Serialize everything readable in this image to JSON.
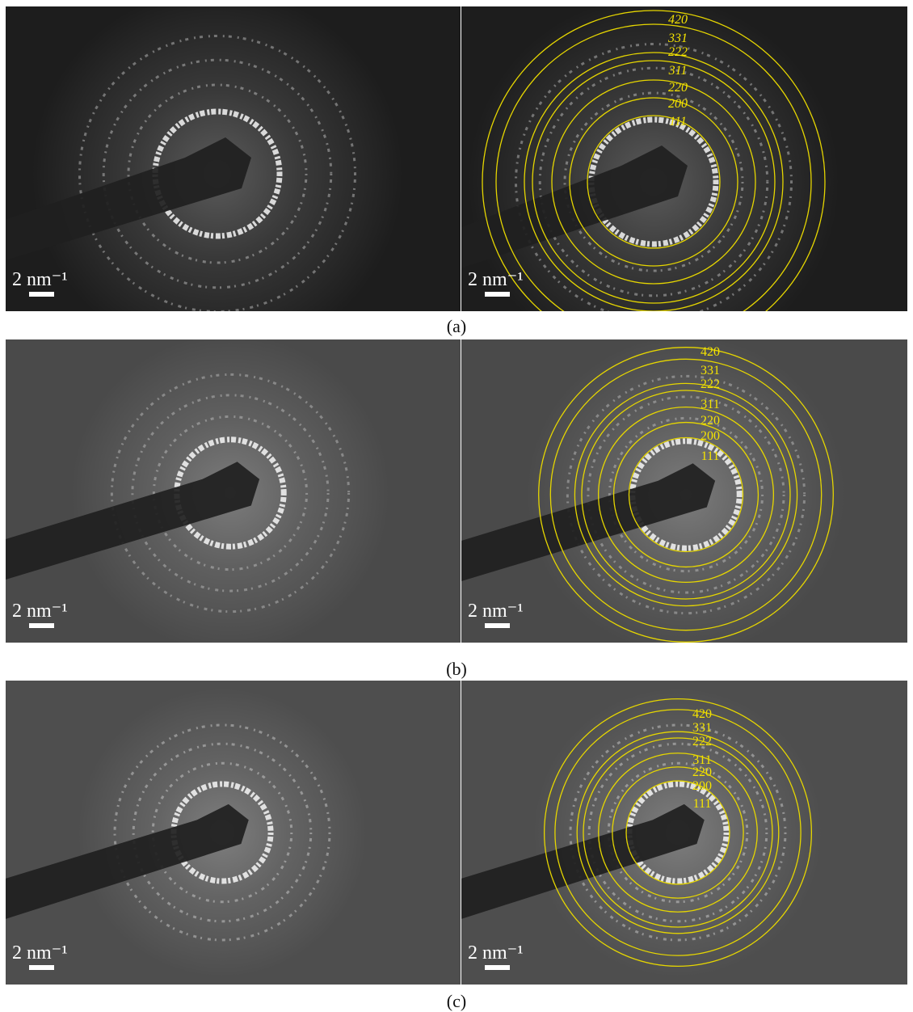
{
  "panels": [
    {
      "caption": "(a)",
      "left": {
        "scale_label": "2 nm⁻¹"
      },
      "right": {
        "scale_label": "2 nm⁻¹",
        "ring_labels": [
          "420",
          "331",
          "222",
          "311",
          "220",
          "200",
          "111"
        ]
      }
    },
    {
      "caption": "(b)",
      "left": {
        "scale_label": "2 nm⁻¹"
      },
      "right": {
        "scale_label": "2 nm⁻¹",
        "ring_labels": [
          "420",
          "331",
          "222",
          "311",
          "220",
          "200",
          "111"
        ]
      }
    },
    {
      "caption": "(c)",
      "left": {
        "scale_label": "2 nm⁻¹"
      },
      "right": {
        "scale_label": "2 nm⁻¹",
        "ring_labels": [
          "420",
          "331",
          "222",
          "311",
          "220",
          "200",
          "111"
        ]
      }
    }
  ]
}
